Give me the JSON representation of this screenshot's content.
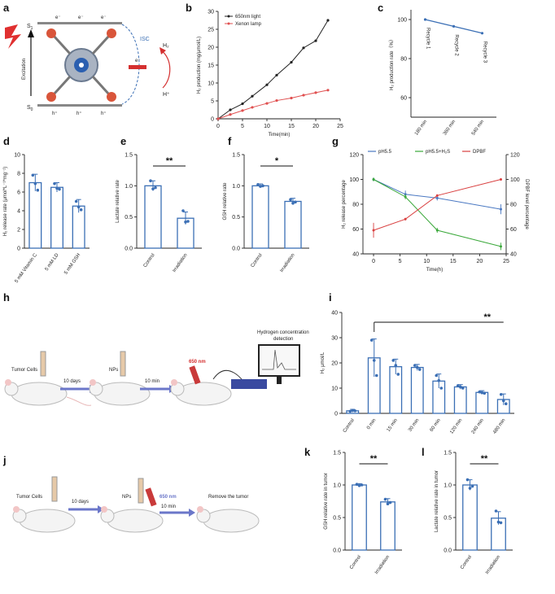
{
  "panel_labels": {
    "a": "a",
    "b": "b",
    "c": "c",
    "d": "d",
    "e": "e",
    "f": "f",
    "g": "g",
    "h": "h",
    "i": "i",
    "j": "j",
    "k": "k",
    "l": "l"
  },
  "panel_a": {
    "s1": "S",
    "s1_sub": "1",
    "s0": "S",
    "s0_sub": "0",
    "excitation": "Excitation",
    "isc": "ISC",
    "e_labels": [
      "e⁻",
      "e⁻",
      "e⁻"
    ],
    "h_labels": [
      "h⁺",
      "h⁺",
      "h⁺"
    ],
    "e_side": "e⁻",
    "h2": "H₂",
    "hplus": "H⁺"
  },
  "panel_h": {
    "tumor_cells": "Tumor Cells",
    "days": "10 days",
    "nps": "NPs",
    "min": "10 min",
    "nm": "650 nm",
    "detection_line1": "Hydrogen concentration",
    "detection_line2": "detection"
  },
  "panel_j": {
    "tumor_cells": "Tumor Cells",
    "days": "10 days",
    "nps": "NPs",
    "nm": "650 nm",
    "min": "10 min",
    "remove": "Remove the tumor"
  },
  "chart_data": [
    {
      "id": "b",
      "type": "line",
      "title": "",
      "xlabel": "Time(min)",
      "ylabel": "H₂ production (mg/μmol/L)",
      "xlim": [
        0,
        25
      ],
      "ylim": [
        0,
        30
      ],
      "xticks": [
        0,
        5,
        10,
        15,
        20,
        25
      ],
      "yticks": [
        0,
        5,
        10,
        15,
        20,
        25,
        30
      ],
      "series": [
        {
          "name": "650nm light",
          "color": "#222222",
          "x": [
            0,
            2.5,
            5,
            7,
            10,
            12,
            15,
            17.5,
            20,
            22.5
          ],
          "y": [
            0,
            2.5,
            4.2,
            6.3,
            9.5,
            12.2,
            15.8,
            19.8,
            21.8,
            27.5
          ]
        },
        {
          "name": "Xenon lamp",
          "color": "#e05050",
          "x": [
            0,
            2.5,
            5,
            7,
            10,
            12,
            15,
            17.5,
            20,
            22.5
          ],
          "y": [
            0,
            1.2,
            2.3,
            3.2,
            4.3,
            5.1,
            5.8,
            6.6,
            7.3,
            8.0
          ]
        }
      ],
      "legend": "top-left"
    },
    {
      "id": "c",
      "type": "line",
      "xlabel": "",
      "ylabel": "H₂ production rate（%）",
      "categories": [
        "Recycle 1",
        "Recycle 2",
        "Recycle 3"
      ],
      "category_sublabels": [
        "180 min",
        "360 min",
        "540 min"
      ],
      "values": [
        100,
        96.5,
        93
      ],
      "ylim": [
        50,
        105
      ],
      "yticks": [
        60,
        80,
        100
      ],
      "color": "#3b6fb5"
    },
    {
      "id": "d",
      "type": "bar",
      "ylabel": "H₂ release rate (μmol*L⁻¹*mg⁻¹)",
      "categories": [
        "5 mM Vitamin C",
        "5 mM LD",
        "5 mM GSH"
      ],
      "values": [
        7.0,
        6.5,
        4.5
      ],
      "errors": [
        0.9,
        0.5,
        0.7
      ],
      "points": [
        [
          7.8,
          6.9,
          6.2
        ],
        [
          6.9,
          6.4,
          6.3
        ],
        [
          5.0,
          4.4,
          4.1
        ]
      ],
      "ylim": [
        0,
        10
      ],
      "yticks": [
        0,
        2,
        4,
        6,
        8,
        10
      ],
      "color": "#3b6fb5"
    },
    {
      "id": "e",
      "type": "bar",
      "ylabel": "Lactate relative rate",
      "categories": [
        "Control",
        "Irradiation"
      ],
      "values": [
        1.0,
        0.48
      ],
      "errors": [
        0.08,
        0.1
      ],
      "points": [
        [
          1.08,
          0.95,
          0.97
        ],
        [
          0.6,
          0.42,
          0.43
        ]
      ],
      "ylim": [
        0,
        1.5
      ],
      "yticks": [
        0.0,
        0.5,
        1.0,
        1.5
      ],
      "significance": "**",
      "color": "#3b6fb5"
    },
    {
      "id": "f",
      "type": "bar",
      "ylabel": "GSH relative rate",
      "categories": [
        "Control",
        "Irradiation"
      ],
      "values": [
        1.0,
        0.75
      ],
      "errors": [
        0.03,
        0.05
      ],
      "points": [
        [
          1.02,
          0.99,
          1.0
        ],
        [
          0.78,
          0.72,
          0.74
        ]
      ],
      "ylim": [
        0,
        1.5
      ],
      "yticks": [
        0.0,
        0.5,
        1.0,
        1.5
      ],
      "significance": "*",
      "color": "#3b6fb5"
    },
    {
      "id": "g",
      "type": "line",
      "xlabel": "Time(h)",
      "ylabel": "H₂ release percentage",
      "ylabel_right": "DPBF level percentage",
      "xlim": [
        -2,
        25
      ],
      "xticks": [
        0,
        5,
        10,
        15,
        20,
        25
      ],
      "ylim": [
        40,
        120
      ],
      "yticks": [
        40,
        60,
        80,
        100,
        120
      ],
      "yticks_right": [
        40,
        60,
        80,
        100,
        120
      ],
      "series": [
        {
          "name": "pH5.5",
          "color": "#4a78c2",
          "x": [
            0,
            6,
            12,
            24
          ],
          "y": [
            100,
            88,
            85,
            76
          ],
          "err": [
            1.5,
            3,
            2,
            4
          ]
        },
        {
          "name": "pH5.5+H₂S",
          "color": "#3aa83a",
          "x": [
            0,
            6,
            12,
            24
          ],
          "y": [
            100,
            86,
            59,
            46
          ],
          "err": [
            1.5,
            2,
            2,
            3
          ]
        },
        {
          "name": "DPBF",
          "color": "#d94040",
          "x": [
            0,
            6,
            12,
            24
          ],
          "y": [
            59,
            68,
            87,
            100
          ],
          "err": [
            6,
            1,
            1,
            1
          ]
        }
      ]
    },
    {
      "id": "i",
      "type": "bar",
      "ylabel": "H₂ μmol/L",
      "categories": [
        "Control",
        "0 min",
        "15 min",
        "30 min",
        "60 min",
        "120 min",
        "240 min",
        "480 min"
      ],
      "values": [
        1.0,
        22.0,
        18.5,
        18.2,
        12.8,
        10.5,
        8.3,
        5.5
      ],
      "errors": [
        0.6,
        7.5,
        3.0,
        1.2,
        2.8,
        0.9,
        0.7,
        2.2
      ],
      "points": [
        [
          0.8,
          1.2,
          1.0
        ],
        [
          29,
          21,
          15
        ],
        [
          21,
          19,
          15.5
        ],
        [
          19,
          18.2,
          17.4
        ],
        [
          15,
          13,
          10
        ],
        [
          11,
          10.5,
          10
        ],
        [
          8.5,
          8.2,
          8
        ],
        [
          7.5,
          5,
          3.8
        ]
      ],
      "ylim": [
        0,
        40
      ],
      "yticks": [
        0,
        10,
        20,
        30,
        40
      ],
      "significance": "**",
      "color": "#3b6fb5"
    },
    {
      "id": "k",
      "type": "bar",
      "ylabel": "GSH relative rate in tumor",
      "categories": [
        "Control",
        "Irradiation"
      ],
      "values": [
        1.0,
        0.74
      ],
      "errors": [
        0.02,
        0.05
      ],
      "points": [
        [
          1.01,
          0.99,
          1.0
        ],
        [
          0.78,
          0.71,
          0.73
        ]
      ],
      "ylim": [
        0,
        1.5
      ],
      "yticks": [
        0.0,
        0.5,
        1.0,
        1.5
      ],
      "significance": "**",
      "color": "#3b6fb5"
    },
    {
      "id": "l",
      "type": "bar",
      "ylabel": "Lactate relative rate in tumor",
      "categories": [
        "Control",
        "Irradiation"
      ],
      "values": [
        1.0,
        0.49
      ],
      "errors": [
        0.08,
        0.1
      ],
      "points": [
        [
          1.08,
          0.95,
          0.98
        ],
        [
          0.6,
          0.43,
          0.42
        ]
      ],
      "ylim": [
        0,
        1.5
      ],
      "yticks": [
        0.0,
        0.5,
        1.0,
        1.5
      ],
      "significance": "**",
      "color": "#3b6fb5"
    }
  ]
}
